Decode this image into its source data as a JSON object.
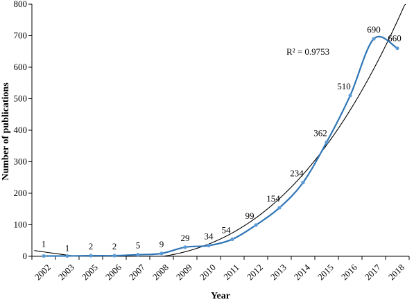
{
  "chart_data": {
    "type": "line",
    "x": [
      "2002",
      "2003",
      "2005",
      "2006",
      "2007",
      "2008",
      "2009",
      "2010",
      "2011",
      "2012",
      "2013",
      "2014",
      "2015",
      "2016",
      "2017",
      "2018"
    ],
    "series": [
      {
        "values": [
          1,
          1,
          2,
          2,
          5,
          9,
          29,
          34,
          54,
          99,
          154,
          234,
          362,
          510,
          690,
          660
        ],
        "color": "#2e75b6",
        "smoothed": true,
        "markers": true
      }
    ],
    "data_labels": [
      "1",
      "1",
      "2",
      "2",
      "5",
      "9",
      "29",
      "34",
      "54",
      "99",
      "154",
      "234",
      "362",
      "510",
      "690",
      "660"
    ],
    "trendline": {
      "type": "polynomial",
      "color": "#000000",
      "equation_label": "R² = 0.9753"
    },
    "xlabel": "Year",
    "ylabel": "Number of publications",
    "ylim": [
      0,
      800
    ],
    "yticks": [
      "0",
      "100",
      "200",
      "300",
      "400",
      "500",
      "600",
      "700",
      "800"
    ],
    "grid": false,
    "legend": "none"
  }
}
